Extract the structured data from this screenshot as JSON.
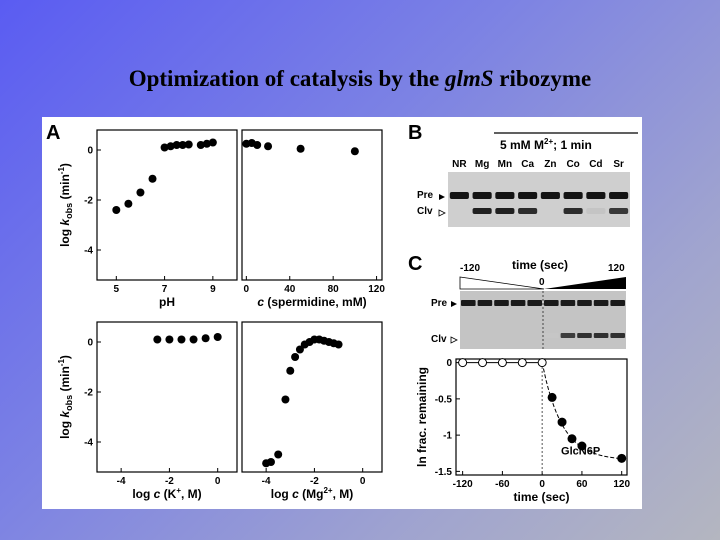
{
  "slide": {
    "title_pre": "Optimization of catalysis by the ",
    "title_italic": "glmS",
    "title_post": " ribozyme"
  },
  "panels": {
    "A": "A",
    "B": "B",
    "C": "C"
  },
  "panelB": {
    "header_a": "5 mM M",
    "header_sup": "2+",
    "header_b": "; 1 min",
    "lanes": [
      "NR",
      "Mg",
      "Mn",
      "Ca",
      "Zn",
      "Co",
      "Cd",
      "Sr"
    ],
    "pre_label": "Pre",
    "clv_label": "Clv",
    "pre_intensity": [
      1,
      1,
      1,
      1,
      1,
      1,
      1,
      1
    ],
    "clv_intensity": [
      0,
      0.95,
      0.95,
      0.9,
      0,
      0.9,
      0.25,
      0.85
    ]
  },
  "panelC": {
    "time_label": "time (sec)",
    "t_start": "-120",
    "t_zero": "0",
    "t_end": "120",
    "pre_label": "Pre",
    "clv_label": "Clv",
    "lane_count": 10,
    "clv_intensity": [
      0,
      0,
      0,
      0,
      0,
      0.25,
      0.85,
      0.9,
      0.9,
      0.9
    ]
  },
  "chart_data": [
    {
      "type": "scatter",
      "panel": "A-top-left",
      "ylabel_pre": "log ",
      "ylabel_k": "k",
      "ylabel_sub": "obs",
      "ylabel_post": " (min",
      "ylabel_sup": "-1",
      "ylabel_end": ")",
      "xlabel": "pH",
      "xticks": [
        "5",
        "7",
        "9"
      ],
      "yticks": [
        "0",
        "-2",
        "-4"
      ],
      "xlim": [
        4.2,
        10
      ],
      "ylim": [
        -5.2,
        0.8
      ],
      "points": [
        [
          5.0,
          -2.4
        ],
        [
          5.5,
          -2.15
        ],
        [
          6.0,
          -1.7
        ],
        [
          6.5,
          -1.15
        ],
        [
          7.0,
          0.1
        ],
        [
          7.25,
          0.15
        ],
        [
          7.5,
          0.2
        ],
        [
          7.75,
          0.2
        ],
        [
          8.0,
          0.22
        ],
        [
          8.5,
          0.2
        ],
        [
          8.75,
          0.25
        ],
        [
          9.0,
          0.3
        ]
      ]
    },
    {
      "type": "scatter",
      "panel": "A-top-right",
      "xlabel_c": "c",
      "xlabel_rest": " (spermidine, mM)",
      "xticks": [
        "0",
        "40",
        "80",
        "120"
      ],
      "xlim": [
        -4,
        125
      ],
      "ylim": [
        -5.2,
        0.8
      ],
      "points": [
        [
          0,
          0.25
        ],
        [
          5,
          0.28
        ],
        [
          10,
          0.2
        ],
        [
          20,
          0.15
        ],
        [
          50,
          0.05
        ],
        [
          100,
          -0.05
        ]
      ]
    },
    {
      "type": "scatter",
      "panel": "A-bottom-left",
      "ylabel_pre": "log ",
      "ylabel_k": "k",
      "ylabel_sub": "obs",
      "ylabel_post": " (min",
      "ylabel_sup": "-1",
      "ylabel_end": ")",
      "xlabel_pre": "log ",
      "xlabel_c": "c",
      "xlabel_mid": " (K",
      "xlabel_sup": "+",
      "xlabel_end": ", M)",
      "xticks": [
        "-4",
        "-2",
        "0"
      ],
      "yticks": [
        "0",
        "-2",
        "-4"
      ],
      "xlim": [
        -5,
        0.8
      ],
      "ylim": [
        -5.2,
        0.8
      ],
      "points": [
        [
          -2.5,
          0.1
        ],
        [
          -2.0,
          0.1
        ],
        [
          -1.5,
          0.1
        ],
        [
          -1.0,
          0.1
        ],
        [
          -0.5,
          0.15
        ],
        [
          0.0,
          0.2
        ]
      ]
    },
    {
      "type": "scatter",
      "panel": "A-bottom-right",
      "xlabel_pre": "log ",
      "xlabel_c": "c",
      "xlabel_mid": " (Mg",
      "xlabel_sup": "2+",
      "xlabel_end": ", M)",
      "xticks": [
        "-4",
        "-2",
        "0"
      ],
      "xlim": [
        -5,
        0.8
      ],
      "ylim": [
        -5.2,
        0.8
      ],
      "points": [
        [
          -4.0,
          -4.85
        ],
        [
          -3.8,
          -4.8
        ],
        [
          -3.5,
          -4.5
        ],
        [
          -3.2,
          -2.3
        ],
        [
          -3.0,
          -1.15
        ],
        [
          -2.8,
          -0.6
        ],
        [
          -2.6,
          -0.3
        ],
        [
          -2.4,
          -0.1
        ],
        [
          -2.2,
          0.0
        ],
        [
          -2.0,
          0.1
        ],
        [
          -1.8,
          0.1
        ],
        [
          -1.6,
          0.05
        ],
        [
          -1.4,
          0.0
        ],
        [
          -1.2,
          -0.05
        ],
        [
          -1.0,
          -0.1
        ]
      ]
    },
    {
      "type": "scatter",
      "panel": "C-plot",
      "ylabel": "ln frac. remaining",
      "xlabel": "time (sec)",
      "annotation": "GlcN6P",
      "xticks": [
        "-120",
        "-60",
        "0",
        "60",
        "120"
      ],
      "yticks": [
        "0",
        "-0.5",
        "-1",
        "-1.5"
      ],
      "xlim": [
        -130,
        128
      ],
      "ylim": [
        -1.55,
        0.05
      ],
      "series": [
        {
          "marker": "open",
          "points": [
            [
              -120,
              0
            ],
            [
              -90,
              0
            ],
            [
              -60,
              0
            ],
            [
              -30,
              0
            ],
            [
              0,
              0
            ]
          ]
        },
        {
          "marker": "filled",
          "points": [
            [
              15,
              -0.48
            ],
            [
              30,
              -0.82
            ],
            [
              45,
              -1.05
            ],
            [
              60,
              -1.15
            ],
            [
              120,
              -1.32
            ]
          ]
        }
      ]
    }
  ]
}
